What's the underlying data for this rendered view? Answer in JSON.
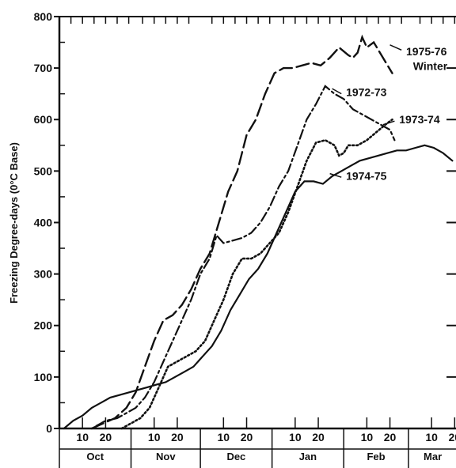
{
  "chart_data": {
    "type": "line",
    "ylabel": "Freezing Degree-days (0°C Base)",
    "ylim": [
      0,
      800
    ],
    "yticks": [
      "0",
      "100",
      "200",
      "300",
      "400",
      "500",
      "600",
      "700",
      "800"
    ],
    "xlim": [
      0,
      172
    ],
    "months": [
      {
        "label": "Oct",
        "start": 0
      },
      {
        "label": "Nov",
        "start": 31
      },
      {
        "label": "Dec",
        "start": 61
      },
      {
        "label": "Jan",
        "start": 92
      },
      {
        "label": "Feb",
        "start": 123
      },
      {
        "label": "Mar",
        "start": 151
      }
    ],
    "day_tick_labels": [
      "10",
      "20"
    ],
    "grid": false,
    "series": [
      {
        "name": "1975-76 Winter",
        "style": "long-dash",
        "x": [
          14,
          19,
          24,
          29,
          33,
          37,
          41,
          45,
          49,
          53,
          57,
          61,
          65,
          69,
          73,
          77,
          81,
          85,
          89,
          93,
          97,
          101,
          105,
          109,
          113,
          117,
          121,
          125,
          127,
          129,
          131,
          133,
          136,
          140,
          144
        ],
        "y": [
          0,
          10,
          20,
          40,
          70,
          120,
          170,
          210,
          220,
          240,
          270,
          310,
          340,
          400,
          460,
          500,
          570,
          600,
          650,
          690,
          700,
          700,
          705,
          710,
          705,
          720,
          740,
          725,
          720,
          730,
          760,
          740,
          750,
          720,
          690
        ]
      },
      {
        "name": "1972-73",
        "style": "dash-dot",
        "x": [
          16,
          20,
          25,
          29,
          33,
          37,
          41,
          45,
          49,
          53,
          57,
          61,
          65,
          68,
          71,
          75,
          79,
          83,
          87,
          91,
          95,
          99,
          103,
          107,
          111,
          115,
          119,
          123,
          127,
          131,
          135,
          139,
          143,
          145
        ],
        "y": [
          5,
          15,
          20,
          30,
          40,
          60,
          90,
          130,
          170,
          210,
          250,
          300,
          330,
          375,
          360,
          365,
          370,
          380,
          400,
          430,
          470,
          500,
          550,
          600,
          630,
          665,
          650,
          640,
          620,
          610,
          600,
          590,
          580,
          560
        ]
      },
      {
        "name": "1973-74",
        "style": "dotted",
        "x": [
          27,
          31,
          35,
          39,
          43,
          47,
          51,
          55,
          59,
          63,
          67,
          71,
          75,
          79,
          83,
          87,
          91,
          95,
          99,
          103,
          107,
          111,
          115,
          119,
          121,
          123,
          125,
          129,
          133,
          137,
          141,
          144
        ],
        "y": [
          0,
          10,
          20,
          40,
          80,
          120,
          130,
          140,
          150,
          170,
          210,
          250,
          300,
          330,
          330,
          340,
          360,
          380,
          420,
          470,
          520,
          555,
          560,
          550,
          530,
          535,
          550,
          550,
          560,
          575,
          590,
          600
        ]
      },
      {
        "name": "1974-75",
        "style": "solid",
        "x": [
          2,
          6,
          10,
          14,
          18,
          22,
          26,
          30,
          34,
          38,
          42,
          46,
          50,
          54,
          58,
          62,
          66,
          70,
          74,
          78,
          82,
          86,
          90,
          94,
          98,
          102,
          106,
          110,
          114,
          118,
          122,
          126,
          130,
          134,
          138,
          142,
          146,
          150,
          154,
          158,
          162,
          166,
          170
        ],
        "y": [
          0,
          15,
          25,
          40,
          50,
          60,
          65,
          70,
          75,
          80,
          85,
          90,
          100,
          110,
          120,
          140,
          160,
          190,
          230,
          260,
          290,
          310,
          340,
          380,
          420,
          460,
          480,
          480,
          475,
          490,
          500,
          510,
          520,
          525,
          530,
          535,
          540,
          540,
          545,
          550,
          545,
          535,
          520
        ]
      }
    ],
    "annotations": [
      {
        "text": "1975-76",
        "series": "1975-76 Winter"
      },
      {
        "text": "Winter",
        "series": "1975-76 Winter"
      },
      {
        "text": "1972-73",
        "series": "1972-73"
      },
      {
        "text": "1973-74",
        "series": "1973-74"
      },
      {
        "text": "1974-75",
        "series": "1974-75"
      }
    ]
  }
}
